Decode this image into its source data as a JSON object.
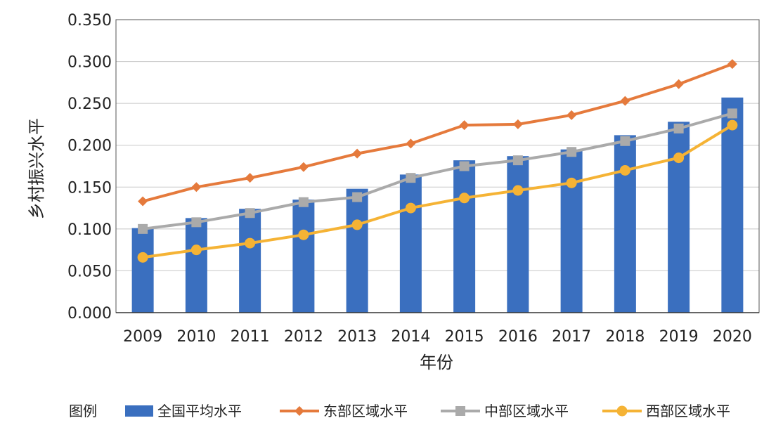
{
  "chart_data": {
    "type": "bar",
    "title": "",
    "xlabel": "年份",
    "ylabel": "乡村振兴水平",
    "ylim": [
      0,
      0.35
    ],
    "yticks": [
      "0.000",
      "0.050",
      "0.100",
      "0.150",
      "0.200",
      "0.250",
      "0.300",
      "0.350"
    ],
    "grid": true,
    "legend_position": "bottom",
    "legend_title": "图例",
    "categories": [
      "2009",
      "2010",
      "2011",
      "2012",
      "2013",
      "2014",
      "2015",
      "2016",
      "2017",
      "2018",
      "2019",
      "2020"
    ],
    "series": [
      {
        "name": "全国平均水平",
        "type": "bar",
        "marker": "bar",
        "color": "#3A6FBF",
        "values": [
          0.101,
          0.113,
          0.124,
          0.135,
          0.148,
          0.165,
          0.182,
          0.187,
          0.195,
          0.212,
          0.228,
          0.257
        ]
      },
      {
        "name": "东部区域水平",
        "type": "line",
        "marker": "diamond",
        "color": "#E57A3C",
        "values": [
          0.133,
          0.15,
          0.161,
          0.174,
          0.19,
          0.202,
          0.224,
          0.225,
          0.236,
          0.253,
          0.273,
          0.297
        ]
      },
      {
        "name": "中部区域水平",
        "type": "line",
        "marker": "square",
        "color": "#AAAAAA",
        "values": [
          0.1,
          0.108,
          0.119,
          0.132,
          0.138,
          0.161,
          0.175,
          0.182,
          0.192,
          0.205,
          0.22,
          0.238
        ]
      },
      {
        "name": "西部区域水平",
        "type": "line",
        "marker": "circle",
        "color": "#F5B335",
        "values": [
          0.066,
          0.075,
          0.083,
          0.093,
          0.105,
          0.125,
          0.137,
          0.146,
          0.155,
          0.17,
          0.185,
          0.224
        ]
      }
    ]
  }
}
